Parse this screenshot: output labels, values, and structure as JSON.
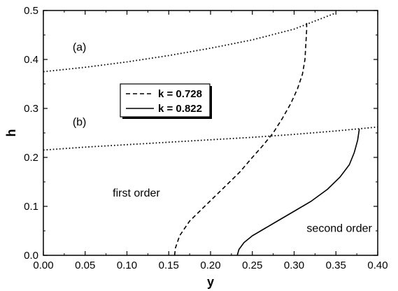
{
  "chart_data": {
    "type": "line",
    "xlabel": "y",
    "ylabel": "h",
    "xlim": [
      0.0,
      0.4
    ],
    "ylim": [
      0.0,
      0.5
    ],
    "x_ticks": [
      0.0,
      0.05,
      0.1,
      0.15,
      0.2,
      0.25,
      0.3,
      0.35,
      0.4
    ],
    "x_tick_labels": [
      "0.00",
      "0.05",
      "0.10",
      "0.15",
      "0.20",
      "0.25",
      "0.30",
      "0.35",
      "0.40"
    ],
    "y_ticks": [
      0.0,
      0.1,
      0.2,
      0.3,
      0.4,
      0.5
    ],
    "y_tick_labels": [
      "0.0",
      "0.1",
      "0.2",
      "0.3",
      "0.4",
      "0.5"
    ],
    "grid": false,
    "legend_position": "center-left",
    "legend": [
      {
        "label": "k = 0.728",
        "style": "dashed"
      },
      {
        "label": "k = 0.822",
        "style": "solid"
      }
    ],
    "series": [
      {
        "name": "k = 0.728",
        "style": "dashed",
        "x": [
          0.157,
          0.158,
          0.163,
          0.175,
          0.19,
          0.205,
          0.22,
          0.235,
          0.25,
          0.263,
          0.275,
          0.286,
          0.296,
          0.304,
          0.31,
          0.313,
          0.314,
          0.315,
          0.315
        ],
        "y": [
          0.0,
          0.015,
          0.04,
          0.07,
          0.095,
          0.12,
          0.145,
          0.17,
          0.2,
          0.225,
          0.25,
          0.28,
          0.31,
          0.34,
          0.37,
          0.4,
          0.43,
          0.46,
          0.48
        ]
      },
      {
        "name": "k = 0.822",
        "style": "solid",
        "x": [
          0.232,
          0.234,
          0.24,
          0.25,
          0.265,
          0.28,
          0.3,
          0.32,
          0.34,
          0.355,
          0.366,
          0.372,
          0.376,
          0.378
        ],
        "y": [
          0.0,
          0.012,
          0.026,
          0.04,
          0.055,
          0.07,
          0.09,
          0.11,
          0.135,
          0.16,
          0.185,
          0.21,
          0.235,
          0.258
        ]
      },
      {
        "style": "dotted",
        "x": [
          0.0,
          0.05,
          0.1,
          0.15,
          0.2,
          0.25,
          0.3,
          0.35
        ],
        "y": [
          0.375,
          0.384,
          0.395,
          0.408,
          0.423,
          0.44,
          0.462,
          0.495
        ]
      },
      {
        "style": "dotted",
        "x": [
          0.0,
          0.05,
          0.1,
          0.15,
          0.2,
          0.25,
          0.3,
          0.35,
          0.4
        ],
        "y": [
          0.215,
          0.221,
          0.226,
          0.231,
          0.236,
          0.241,
          0.247,
          0.254,
          0.262
        ]
      }
    ],
    "annotations": [
      {
        "text": "(a)",
        "x": 0.035,
        "y": 0.418
      },
      {
        "text": "(b)",
        "x": 0.035,
        "y": 0.265
      },
      {
        "text": "first order",
        "x": 0.083,
        "y": 0.12
      },
      {
        "text": "second order",
        "x": 0.315,
        "y": 0.048
      }
    ]
  }
}
